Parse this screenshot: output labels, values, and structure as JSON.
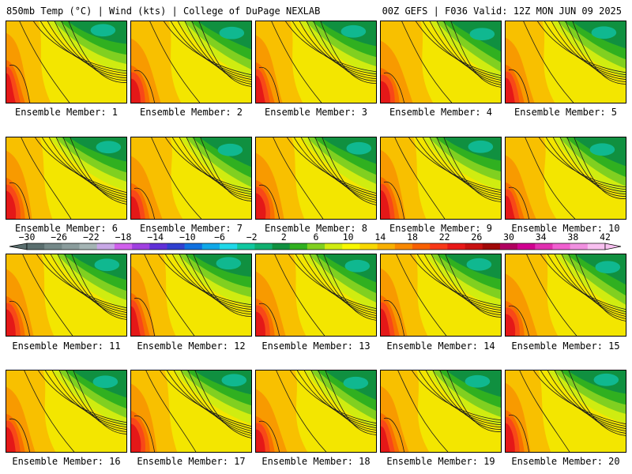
{
  "header": {
    "left": "850mb Temp (°C) | Wind (kts) | College of DuPage NEXLAB",
    "right": "00Z GEFS | F036 Valid: 12Z MON JUN 09 2025"
  },
  "members": [
    "Ensemble Member: 1",
    "Ensemble Member: 2",
    "Ensemble Member: 3",
    "Ensemble Member: 4",
    "Ensemble Member: 5",
    "Ensemble Member: 6",
    "Ensemble Member: 7",
    "Ensemble Member: 8",
    "Ensemble Member: 9",
    "Ensemble Member: 10",
    "Ensemble Member: 11",
    "Ensemble Member: 12",
    "Ensemble Member: 13",
    "Ensemble Member: 14",
    "Ensemble Member: 15",
    "Ensemble Member: 16",
    "Ensemble Member: 17",
    "Ensemble Member: 18",
    "Ensemble Member: 19",
    "Ensemble Member: 20"
  ],
  "colorbar": {
    "tick_labels": [
      "−30",
      "−26",
      "−22",
      "−18",
      "−14",
      "−10",
      "−6",
      "−2",
      "2",
      "6",
      "10",
      "14",
      "18",
      "22",
      "26",
      "30",
      "34",
      "38",
      "42"
    ],
    "colors": [
      "#5a6e6e",
      "#748888",
      "#8a9c9c",
      "#a4b4b4",
      "#c8a8e6",
      "#d060ec",
      "#a040e0",
      "#6030d8",
      "#3040d0",
      "#1070e0",
      "#10a8e8",
      "#20d8e8",
      "#10c8a0",
      "#10b070",
      "#109040",
      "#30b020",
      "#80d020",
      "#d0ec10",
      "#f8f800",
      "#f8d800",
      "#f8b000",
      "#f88800",
      "#f86000",
      "#f83818",
      "#e81818",
      "#c81010",
      "#a00808",
      "#b00060",
      "#d00090",
      "#e030b0",
      "#f060d0",
      "#f090e0",
      "#f8c0f0"
    ]
  },
  "map_colors": {
    "green_dark": "#109040",
    "green": "#30b020",
    "green_light": "#80d020",
    "lime": "#d0ec10",
    "yellow": "#f3e600",
    "orange_light": "#f8c000",
    "orange": "#f89a00",
    "orange_dark": "#f87000",
    "red_orange": "#f84818",
    "red": "#e41818",
    "teal": "#10b890"
  }
}
